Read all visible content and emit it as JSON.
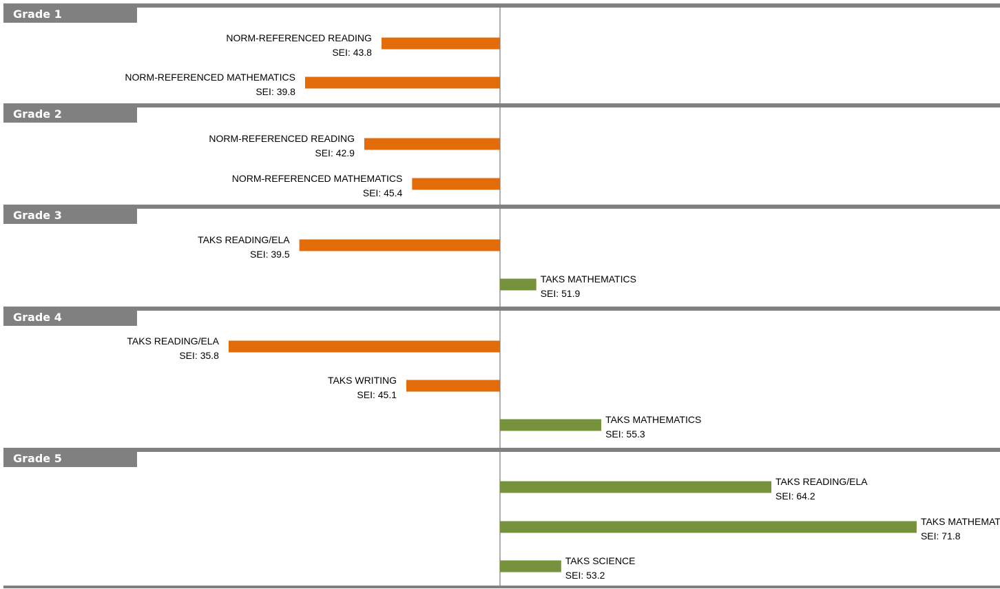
{
  "chart_data": {
    "type": "bar",
    "orientation": "horizontal",
    "baseline": 50,
    "value_prefix": "SEI: ",
    "colors": {
      "below": "#e36c0a",
      "above": "#76923c",
      "header": "#808080",
      "title_text": "#ffffff",
      "axis": "#595959"
    },
    "groups": [
      {
        "title": "Grade 1",
        "items": [
          {
            "label": "NORM-REFERENCED READING",
            "value": 43.8
          },
          {
            "label": "NORM-REFERENCED MATHEMATICS",
            "value": 39.8
          }
        ]
      },
      {
        "title": "Grade 2",
        "items": [
          {
            "label": "NORM-REFERENCED READING",
            "value": 42.9
          },
          {
            "label": "NORM-REFERENCED MATHEMATICS",
            "value": 45.4
          }
        ]
      },
      {
        "title": "Grade 3",
        "items": [
          {
            "label": "TAKS READING/ELA",
            "value": 39.5
          },
          {
            "label": "TAKS MATHEMATICS",
            "value": 51.9
          }
        ]
      },
      {
        "title": "Grade 4",
        "items": [
          {
            "label": "TAKS READING/ELA",
            "value": 35.8
          },
          {
            "label": "TAKS WRITING",
            "value": 45.1
          },
          {
            "label": "TAKS MATHEMATICS",
            "value": 55.3
          }
        ]
      },
      {
        "title": "Grade 5",
        "items": [
          {
            "label": "TAKS READING/ELA",
            "value": 64.2
          },
          {
            "label": "TAKS MATHEMATICS",
            "value": 71.8
          },
          {
            "label": "TAKS SCIENCE",
            "value": 53.2
          }
        ]
      }
    ]
  }
}
